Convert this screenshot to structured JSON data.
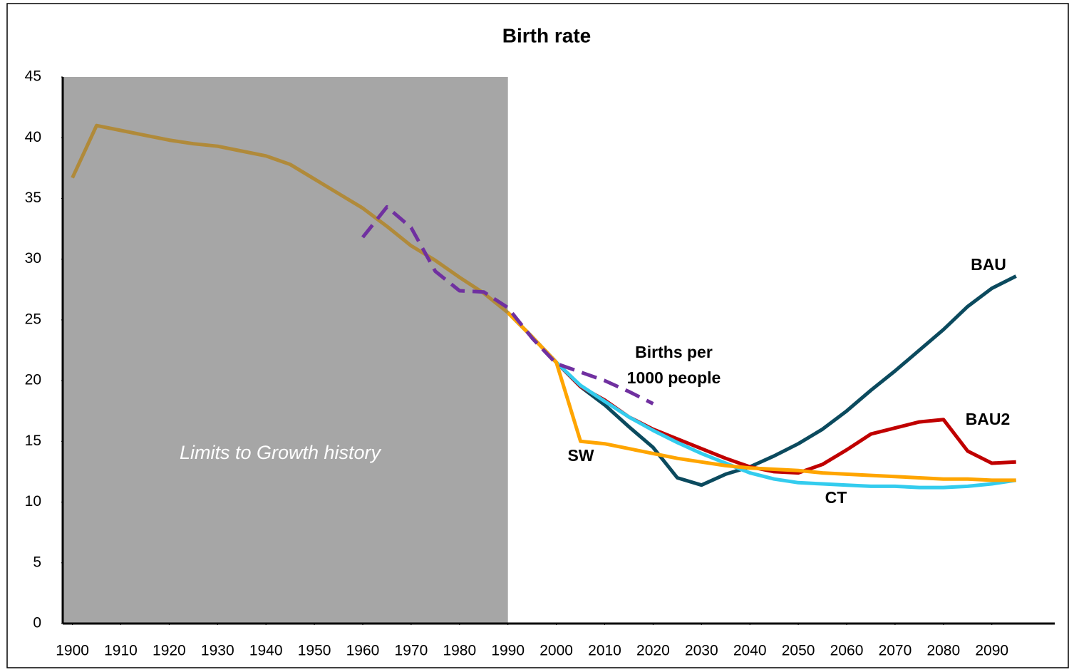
{
  "chart_data": {
    "type": "line",
    "title": "Birth rate",
    "annotation": "Limits to Growth history",
    "shade_until": 1990,
    "shade_color": "#a6a6a6",
    "xlim": [
      1898,
      2103
    ],
    "xticks": [
      1900,
      1910,
      1920,
      1930,
      1940,
      1950,
      1960,
      1970,
      1980,
      1990,
      2000,
      2010,
      2020,
      2030,
      2040,
      2050,
      2060,
      2070,
      2080,
      2090
    ],
    "ylim": [
      0,
      45
    ],
    "yticks": [
      0,
      5,
      10,
      15,
      20,
      25,
      30,
      35,
      40,
      45
    ],
    "grid": false,
    "series": [
      {
        "name": "BAU",
        "color": "#0b4a5e",
        "x": [
          1990,
          1995,
          2000,
          2005,
          2010,
          2015,
          2020,
          2025,
          2030,
          2035,
          2040,
          2045,
          2050,
          2055,
          2060,
          2065,
          2070,
          2075,
          2080,
          2085,
          2090,
          2095
        ],
        "values": [
          25.6,
          23.6,
          21.5,
          19.5,
          18.0,
          16.2,
          14.5,
          12.0,
          11.4,
          12.3,
          12.9,
          13.8,
          14.8,
          16.0,
          17.5,
          19.2,
          20.8,
          22.5,
          24.2,
          26.1,
          27.6,
          28.6
        ]
      },
      {
        "name": "BAU2",
        "color": "#c00000",
        "x": [
          1990,
          1995,
          2000,
          2005,
          2010,
          2015,
          2020,
          2025,
          2030,
          2035,
          2040,
          2045,
          2050,
          2055,
          2060,
          2065,
          2070,
          2075,
          2080,
          2085,
          2090,
          2095
        ],
        "values": [
          25.6,
          23.6,
          21.5,
          19.5,
          18.4,
          17.0,
          16.0,
          15.2,
          14.4,
          13.6,
          12.9,
          12.5,
          12.4,
          13.1,
          14.3,
          15.6,
          16.1,
          16.6,
          16.8,
          14.2,
          13.2,
          13.3
        ]
      },
      {
        "name": "CT",
        "color": "#33ccee",
        "x": [
          1990,
          1995,
          2000,
          2005,
          2010,
          2015,
          2020,
          2025,
          2030,
          2035,
          2040,
          2045,
          2050,
          2055,
          2060,
          2065,
          2070,
          2075,
          2080,
          2085,
          2090,
          2095
        ],
        "values": [
          25.6,
          23.6,
          21.5,
          19.6,
          18.3,
          17.0,
          15.9,
          14.9,
          14.0,
          13.2,
          12.4,
          11.9,
          11.6,
          11.5,
          11.4,
          11.3,
          11.3,
          11.2,
          11.2,
          11.3,
          11.5,
          11.8
        ]
      },
      {
        "name": "SW",
        "color": "#ffa500",
        "x": [
          1990,
          1995,
          2000,
          2005,
          2010,
          2015,
          2020,
          2025,
          2030,
          2035,
          2040,
          2045,
          2050,
          2055,
          2060,
          2065,
          2070,
          2075,
          2080,
          2085,
          2090,
          2095
        ],
        "values": [
          25.6,
          23.6,
          21.5,
          15.0,
          14.8,
          14.4,
          14.0,
          13.6,
          13.3,
          13.0,
          12.8,
          12.7,
          12.6,
          12.4,
          12.3,
          12.2,
          12.1,
          12.0,
          11.9,
          11.9,
          11.8,
          11.8
        ]
      },
      {
        "color": "#b08a3a",
        "x": [
          1900,
          1905,
          1910,
          1915,
          1920,
          1925,
          1930,
          1935,
          1940,
          1945,
          1950,
          1955,
          1960,
          1965,
          1970,
          1975,
          1980,
          1985,
          1990
        ],
        "values": [
          36.7,
          41.0,
          40.6,
          40.2,
          39.8,
          39.5,
          39.3,
          38.9,
          38.5,
          37.8,
          36.6,
          35.4,
          34.2,
          32.7,
          31.1,
          29.9,
          28.5,
          27.2,
          25.6
        ]
      },
      {
        "name": "Births per 1000 people",
        "color": "#7030a0",
        "dash": true,
        "x": [
          1960,
          1965,
          1970,
          1975,
          1980,
          1985,
          1990,
          1995,
          2000,
          2005,
          2010,
          2015,
          2020
        ],
        "values": [
          31.8,
          34.3,
          32.6,
          29.0,
          27.4,
          27.3,
          26.0,
          23.5,
          21.4,
          20.7,
          20.0,
          19.1,
          18.1
        ]
      }
    ]
  }
}
